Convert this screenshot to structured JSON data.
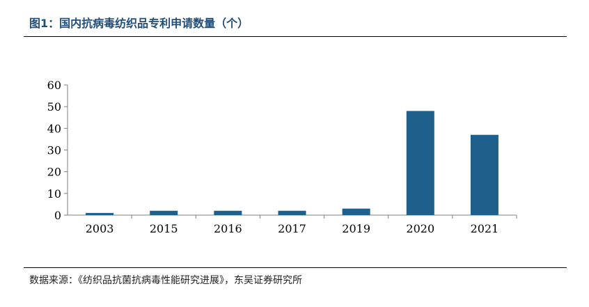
{
  "title": "图1：国内抗病毒纺织品专利申请数量（个）",
  "source": "数据来源：《纺织品抗菌抗病毒性能研究进展》，东吴证券研究所",
  "chart_data": {
    "type": "bar",
    "categories": [
      "2003",
      "2015",
      "2016",
      "2017",
      "2019",
      "2020",
      "2021"
    ],
    "values": [
      1,
      2,
      2,
      2,
      3,
      48,
      37
    ],
    "ylim": [
      0,
      60
    ],
    "yticks": [
      0,
      10,
      20,
      30,
      40,
      50,
      60
    ],
    "grid": false,
    "bar_color": "#1f5f8b"
  }
}
